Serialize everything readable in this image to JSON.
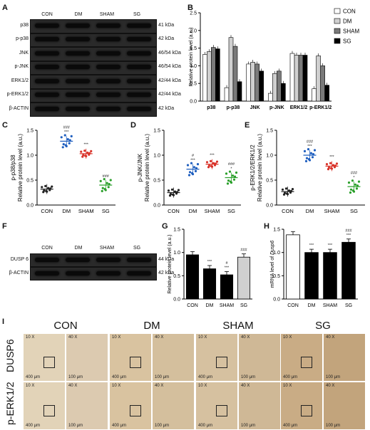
{
  "panel_letters": {
    "a": "A",
    "b": "B",
    "c": "C",
    "d": "D",
    "e": "E",
    "f": "F",
    "g": "G",
    "h": "H",
    "i": "I"
  },
  "groups": [
    "CON",
    "DM",
    "SHAM",
    "SG"
  ],
  "blot_a": {
    "rows": [
      {
        "label": "p38",
        "kda": "41 kDa"
      },
      {
        "label": "p-p38",
        "kda": "42 kDa"
      },
      {
        "label": "JNK",
        "kda": "46/54 kDa"
      },
      {
        "label": "p-JNK",
        "kda": "46/54 kDa"
      },
      {
        "label": "ERK1/2",
        "kda": "42/44 kDa"
      },
      {
        "label": "p-ERK1/2",
        "kda": "42/44 kDa"
      },
      {
        "label": "β-ACTIN",
        "kda": "42 kDa"
      }
    ]
  },
  "blot_f": {
    "rows": [
      {
        "label": "DUSP 6",
        "kda": "44 kDa"
      },
      {
        "label": "β-ACTIN",
        "kda": "42 kDa"
      }
    ]
  },
  "colors": {
    "CON": "#ffffff",
    "DM": "#d0d0d0",
    "SHAM": "#7a7a7a",
    "SG": "#000000",
    "c_con": "#222222",
    "c_dm": "#1f5fbf",
    "c_sham": "#d9342b",
    "c_sg": "#2ca02c"
  },
  "chart_data": [
    {
      "panel": "B",
      "type": "bar",
      "categories": [
        "p38",
        "p-p38",
        "JNK",
        "p-JNK",
        "ERK1/2",
        "p-ERK1/2"
      ],
      "ylabel": "Relative protein level (a.u.)",
      "ylim": [
        0,
        2.5
      ],
      "yticks": [
        0,
        0.5,
        1.0,
        1.5,
        2.0,
        2.5
      ],
      "legend": [
        "CON",
        "DM",
        "SHAM",
        "SG"
      ],
      "series": [
        {
          "name": "CON",
          "values": [
            1.32,
            0.38,
            1.05,
            0.22,
            1.35,
            0.35
          ]
        },
        {
          "name": "DM",
          "values": [
            1.4,
            1.8,
            1.1,
            0.78,
            1.3,
            1.28
          ]
        },
        {
          "name": "SHAM",
          "values": [
            1.52,
            1.55,
            1.05,
            0.85,
            1.3,
            1.0
          ]
        },
        {
          "name": "SG",
          "values": [
            1.48,
            0.55,
            0.85,
            0.5,
            1.3,
            0.45
          ]
        }
      ]
    },
    {
      "panel": "C",
      "type": "scatter",
      "categories": [
        "CON",
        "DM",
        "SHAM",
        "SG"
      ],
      "ylabel": "Relative protein level (a.u.)",
      "title": "p-p38/p38",
      "ylim": [
        0,
        1.5
      ],
      "yticks": [
        0,
        0.5,
        1.0,
        1.5
      ],
      "means": [
        0.32,
        1.28,
        1.03,
        0.4
      ],
      "annotations": [
        "",
        "###\n***",
        "***",
        "###"
      ]
    },
    {
      "panel": "D",
      "type": "scatter",
      "categories": [
        "CON",
        "DM",
        "SHAM",
        "SG"
      ],
      "ylabel": "Relative protein level (a.u.)",
      "title": "p-JNK/JNK",
      "ylim": [
        0,
        1.5
      ],
      "yticks": [
        0,
        0.5,
        1.0,
        1.5
      ],
      "means": [
        0.25,
        0.72,
        0.82,
        0.55
      ],
      "annotations": [
        "",
        "#\n***",
        "***",
        "###\n*"
      ]
    },
    {
      "panel": "E",
      "type": "scatter",
      "categories": [
        "CON",
        "DM",
        "SHAM",
        "SG"
      ],
      "ylabel": "Relative protein level (a.u.)",
      "title": "p-ERK1/2/ERK1/2",
      "ylim": [
        0,
        1.5
      ],
      "yticks": [
        0,
        0.5,
        1.0,
        1.5
      ],
      "means": [
        0.27,
        1.0,
        0.78,
        0.37
      ],
      "annotations": [
        "",
        "###\n***",
        "***",
        "###\n*"
      ]
    },
    {
      "panel": "G",
      "type": "bar",
      "categories": [
        "CON",
        "DM",
        "SHAM",
        "SG"
      ],
      "ylabel": "Relative protein level (a.u.)",
      "ylim": [
        0,
        1.5
      ],
      "yticks": [
        0,
        0.5,
        1.0,
        1.5
      ],
      "values": [
        0.95,
        0.65,
        0.52,
        0.9
      ],
      "annotations": [
        "",
        "***",
        "#\n***",
        "###"
      ]
    },
    {
      "panel": "H",
      "type": "bar",
      "categories": [
        "CON",
        "DM",
        "SHAM",
        "SG"
      ],
      "ylabel_prefix": "mRNA level of ",
      "ylabel_gene": "Dusp6",
      "ylim": [
        0,
        1.5
      ],
      "yticks": [
        0,
        0.5,
        1.0,
        1.5
      ],
      "values": [
        1.38,
        1.0,
        1.0,
        1.22
      ],
      "annotations": [
        "",
        "***",
        "***",
        "###\n***"
      ]
    }
  ],
  "ihc": {
    "columns": [
      "CON",
      "DM",
      "SHAM",
      "SG"
    ],
    "rows": [
      "DUSP6",
      "p-ERK1/2"
    ],
    "mag_low": "10 X",
    "mag_high": "40 X",
    "scale_low": "400 μm",
    "scale_high": "100 μm"
  }
}
